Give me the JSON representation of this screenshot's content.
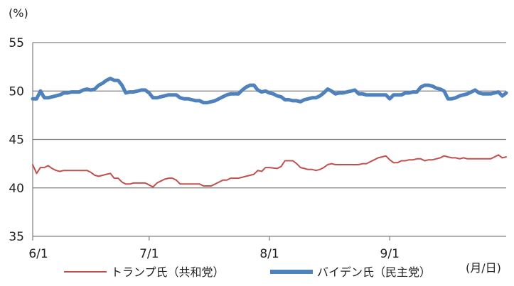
{
  "chart_data": {
    "type": "line",
    "title": "",
    "y_unit": "(%)",
    "x_unit": "(月/日)",
    "ylim": [
      35,
      55
    ],
    "yticks": [
      35,
      40,
      45,
      50,
      55
    ],
    "grid": true,
    "legend_position": "bottom",
    "xticks": [
      {
        "day": 0,
        "label": "6/1"
      },
      {
        "day": 30,
        "label": "7/1"
      },
      {
        "day": 61,
        "label": "8/1"
      },
      {
        "day": 92,
        "label": "9/1"
      }
    ],
    "x_max_day": 122,
    "series": [
      {
        "name": "トランプ氏（共和党）",
        "color": "#c0504d",
        "points": [
          [
            0,
            42.4
          ],
          [
            1,
            41.5
          ],
          [
            2,
            42.1
          ],
          [
            3,
            42.1
          ],
          [
            4,
            42.3
          ],
          [
            5,
            42.0
          ],
          [
            6,
            41.8
          ],
          [
            7,
            41.7
          ],
          [
            8,
            41.8
          ],
          [
            10,
            41.8
          ],
          [
            12,
            41.8
          ],
          [
            14,
            41.8
          ],
          [
            15,
            41.6
          ],
          [
            16,
            41.3
          ],
          [
            17,
            41.2
          ],
          [
            18,
            41.3
          ],
          [
            19,
            41.4
          ],
          [
            20,
            41.5
          ],
          [
            21,
            41.0
          ],
          [
            22,
            41.0
          ],
          [
            23,
            40.6
          ],
          [
            24,
            40.4
          ],
          [
            25,
            40.4
          ],
          [
            26,
            40.5
          ],
          [
            28,
            40.5
          ],
          [
            29,
            40.5
          ],
          [
            30,
            40.3
          ],
          [
            31,
            40.1
          ],
          [
            32,
            40.5
          ],
          [
            33,
            40.7
          ],
          [
            34,
            40.9
          ],
          [
            35,
            41.0
          ],
          [
            36,
            41.0
          ],
          [
            37,
            40.8
          ],
          [
            38,
            40.4
          ],
          [
            39,
            40.4
          ],
          [
            41,
            40.4
          ],
          [
            43,
            40.4
          ],
          [
            44,
            40.2
          ],
          [
            45,
            40.2
          ],
          [
            46,
            40.2
          ],
          [
            47,
            40.4
          ],
          [
            48,
            40.6
          ],
          [
            49,
            40.8
          ],
          [
            50,
            40.8
          ],
          [
            51,
            41.0
          ],
          [
            52,
            41.0
          ],
          [
            53,
            41.0
          ],
          [
            55,
            41.2
          ],
          [
            57,
            41.4
          ],
          [
            58,
            41.8
          ],
          [
            59,
            41.7
          ],
          [
            60,
            42.1
          ],
          [
            61,
            42.1
          ],
          [
            63,
            42.0
          ],
          [
            64,
            42.2
          ],
          [
            65,
            42.8
          ],
          [
            66,
            42.8
          ],
          [
            67,
            42.8
          ],
          [
            68,
            42.5
          ],
          [
            69,
            42.1
          ],
          [
            70,
            42.0
          ],
          [
            71,
            41.9
          ],
          [
            72,
            41.9
          ],
          [
            73,
            41.8
          ],
          [
            74,
            41.9
          ],
          [
            75,
            42.1
          ],
          [
            76,
            42.4
          ],
          [
            77,
            42.5
          ],
          [
            78,
            42.4
          ],
          [
            80,
            42.4
          ],
          [
            82,
            42.4
          ],
          [
            84,
            42.4
          ],
          [
            85,
            42.5
          ],
          [
            86,
            42.5
          ],
          [
            87,
            42.7
          ],
          [
            88,
            42.9
          ],
          [
            89,
            43.1
          ],
          [
            90,
            43.2
          ],
          [
            91,
            43.3
          ],
          [
            92,
            42.9
          ],
          [
            93,
            42.6
          ],
          [
            94,
            42.6
          ],
          [
            95,
            42.8
          ],
          [
            96,
            42.8
          ],
          [
            97,
            42.9
          ],
          [
            98,
            42.9
          ],
          [
            99,
            43.0
          ],
          [
            100,
            43.0
          ],
          [
            101,
            42.8
          ],
          [
            102,
            42.9
          ],
          [
            103,
            42.9
          ],
          [
            104,
            43.0
          ],
          [
            105,
            43.1
          ],
          [
            106,
            43.3
          ],
          [
            107,
            43.2
          ],
          [
            108,
            43.1
          ],
          [
            109,
            43.1
          ],
          [
            110,
            43.0
          ],
          [
            111,
            43.1
          ],
          [
            112,
            43.0
          ],
          [
            113,
            43.0
          ],
          [
            115,
            43.0
          ],
          [
            117,
            43.0
          ],
          [
            118,
            43.0
          ],
          [
            119,
            43.2
          ],
          [
            120,
            43.4
          ],
          [
            121,
            43.1
          ],
          [
            122,
            43.2
          ]
        ]
      },
      {
        "name": "バイデン氏（民主党）",
        "color": "#4f81bd",
        "points": [
          [
            0,
            49.2
          ],
          [
            1,
            49.2
          ],
          [
            2,
            50.0
          ],
          [
            3,
            49.3
          ],
          [
            4,
            49.3
          ],
          [
            5,
            49.4
          ],
          [
            6,
            49.5
          ],
          [
            7,
            49.6
          ],
          [
            8,
            49.8
          ],
          [
            9,
            49.8
          ],
          [
            10,
            49.9
          ],
          [
            12,
            49.9
          ],
          [
            13,
            50.1
          ],
          [
            14,
            50.2
          ],
          [
            15,
            50.1
          ],
          [
            16,
            50.2
          ],
          [
            17,
            50.6
          ],
          [
            18,
            50.8
          ],
          [
            19,
            51.1
          ],
          [
            20,
            51.3
          ],
          [
            21,
            51.1
          ],
          [
            22,
            51.1
          ],
          [
            23,
            50.6
          ],
          [
            24,
            49.8
          ],
          [
            25,
            49.9
          ],
          [
            26,
            49.9
          ],
          [
            27,
            50.0
          ],
          [
            28,
            50.1
          ],
          [
            29,
            50.1
          ],
          [
            30,
            49.8
          ],
          [
            31,
            49.3
          ],
          [
            32,
            49.3
          ],
          [
            33,
            49.4
          ],
          [
            34,
            49.5
          ],
          [
            35,
            49.6
          ],
          [
            36,
            49.6
          ],
          [
            37,
            49.6
          ],
          [
            38,
            49.3
          ],
          [
            39,
            49.2
          ],
          [
            40,
            49.2
          ],
          [
            41,
            49.1
          ],
          [
            42,
            49.0
          ],
          [
            43,
            49.0
          ],
          [
            44,
            48.8
          ],
          [
            45,
            48.8
          ],
          [
            46,
            48.9
          ],
          [
            47,
            49.0
          ],
          [
            48,
            49.2
          ],
          [
            49,
            49.4
          ],
          [
            50,
            49.6
          ],
          [
            51,
            49.7
          ],
          [
            52,
            49.7
          ],
          [
            53,
            49.7
          ],
          [
            54,
            50.1
          ],
          [
            55,
            50.4
          ],
          [
            56,
            50.6
          ],
          [
            57,
            50.6
          ],
          [
            58,
            50.1
          ],
          [
            59,
            49.9
          ],
          [
            60,
            50.0
          ],
          [
            61,
            49.8
          ],
          [
            62,
            49.7
          ],
          [
            63,
            49.5
          ],
          [
            64,
            49.4
          ],
          [
            65,
            49.1
          ],
          [
            66,
            49.1
          ],
          [
            67,
            49.0
          ],
          [
            68,
            49.0
          ],
          [
            69,
            48.9
          ],
          [
            70,
            49.1
          ],
          [
            71,
            49.2
          ],
          [
            72,
            49.3
          ],
          [
            73,
            49.3
          ],
          [
            74,
            49.5
          ],
          [
            75,
            49.8
          ],
          [
            76,
            50.2
          ],
          [
            77,
            50.0
          ],
          [
            78,
            49.7
          ],
          [
            79,
            49.8
          ],
          [
            80,
            49.8
          ],
          [
            81,
            49.9
          ],
          [
            82,
            50.0
          ],
          [
            83,
            50.1
          ],
          [
            84,
            49.7
          ],
          [
            85,
            49.7
          ],
          [
            86,
            49.6
          ],
          [
            88,
            49.6
          ],
          [
            90,
            49.6
          ],
          [
            91,
            49.6
          ],
          [
            92,
            49.2
          ],
          [
            93,
            49.6
          ],
          [
            94,
            49.6
          ],
          [
            95,
            49.6
          ],
          [
            96,
            49.8
          ],
          [
            97,
            49.8
          ],
          [
            98,
            49.9
          ],
          [
            99,
            49.9
          ],
          [
            100,
            50.4
          ],
          [
            101,
            50.6
          ],
          [
            102,
            50.6
          ],
          [
            103,
            50.5
          ],
          [
            104,
            50.3
          ],
          [
            105,
            50.2
          ],
          [
            106,
            50.0
          ],
          [
            107,
            49.2
          ],
          [
            108,
            49.2
          ],
          [
            109,
            49.3
          ],
          [
            110,
            49.5
          ],
          [
            111,
            49.6
          ],
          [
            112,
            49.7
          ],
          [
            113,
            49.9
          ],
          [
            114,
            50.1
          ],
          [
            115,
            49.8
          ],
          [
            116,
            49.7
          ],
          [
            117,
            49.7
          ],
          [
            118,
            49.7
          ],
          [
            119,
            49.8
          ],
          [
            120,
            49.9
          ],
          [
            121,
            49.5
          ],
          [
            122,
            49.8
          ]
        ]
      }
    ]
  }
}
